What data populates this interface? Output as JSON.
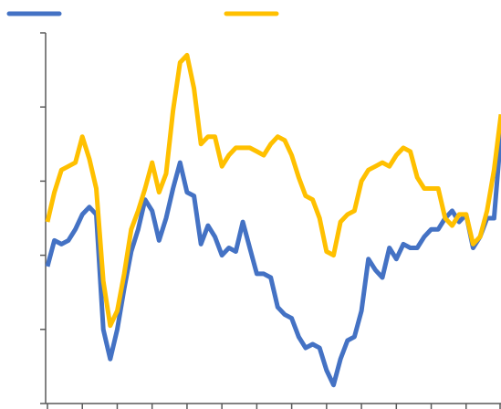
{
  "chart_data": {
    "type": "line",
    "x": [
      0,
      2,
      4,
      6,
      8,
      10,
      12,
      14,
      16,
      18,
      20,
      22,
      24,
      26,
      28,
      30,
      32,
      34,
      36,
      38,
      40,
      42,
      44,
      46,
      48,
      50,
      52,
      54,
      56,
      58,
      60,
      62,
      64,
      66,
      68,
      70,
      72,
      74,
      76,
      78,
      80,
      82,
      84,
      86,
      88,
      90,
      92,
      94,
      96,
      98,
      100,
      102,
      104,
      106,
      108,
      110,
      112,
      114,
      116,
      118,
      120,
      122,
      124,
      126,
      128,
      130
    ],
    "series": [
      {
        "color": "#4472c4",
        "values": [
          37,
          44,
          43,
          44,
          47,
          51,
          53,
          51,
          20,
          12,
          20,
          31,
          41,
          47,
          55,
          52,
          44,
          50,
          58,
          65,
          57,
          56,
          43,
          48,
          45,
          40,
          42,
          41,
          49,
          42,
          35,
          35,
          34,
          26,
          24,
          23,
          18,
          15,
          16,
          15,
          9,
          5,
          12,
          17,
          18,
          25,
          39,
          36,
          34,
          42,
          39,
          43,
          42,
          42,
          45,
          47,
          47,
          50,
          52,
          49,
          51,
          42,
          45,
          50,
          50,
          73
        ]
      },
      {
        "color": "#ffc000",
        "values": [
          49,
          57,
          63,
          64,
          65,
          72,
          66,
          58,
          33,
          21,
          25,
          35,
          47,
          52,
          58,
          65,
          57,
          62,
          79,
          92,
          94,
          85,
          70,
          72,
          72,
          64,
          67,
          69,
          69,
          69,
          68,
          67,
          70,
          72,
          71,
          67,
          61,
          56,
          55,
          50,
          41,
          40,
          49,
          51,
          52,
          60,
          63,
          64,
          65,
          64,
          67,
          69,
          68,
          61,
          58,
          58,
          58,
          50,
          48,
          51,
          51,
          43,
          45,
          52,
          63,
          78
        ]
      }
    ],
    "xlim": [
      0,
      130
    ],
    "xticks": [
      0,
      10,
      20,
      30,
      40,
      50,
      60,
      70,
      80,
      90,
      100,
      110,
      120,
      130
    ],
    "ylim": [
      0,
      100
    ],
    "yticks": [
      0,
      20,
      40,
      60,
      80,
      100
    ]
  }
}
